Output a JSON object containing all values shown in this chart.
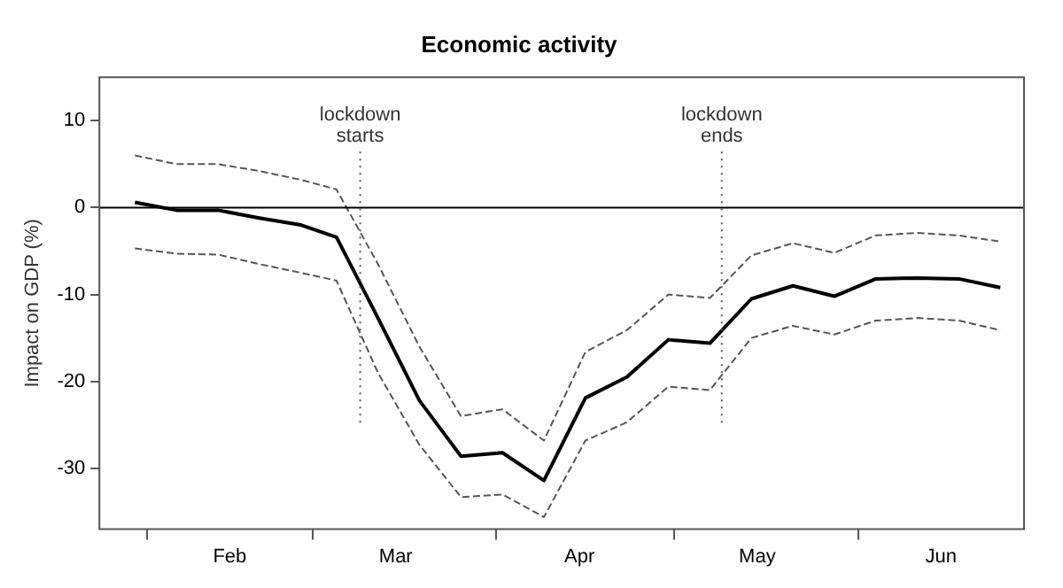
{
  "chart_data": {
    "type": "line",
    "title": "Economic activity",
    "ylabel": "Impact on GDP (%)",
    "x": [
      "--01-30",
      "--02-06",
      "--02-13",
      "--02-20",
      "--02-27",
      "--03-05",
      "--03-12",
      "--03-19",
      "--03-26",
      "--04-02",
      "--04-09",
      "--04-16",
      "--04-23",
      "--04-30",
      "--05-07",
      "--05-14",
      "--05-21",
      "--05-28",
      "--06-04",
      "--06-11",
      "--06-18",
      "--06-25"
    ],
    "series": [
      {
        "color": "#000000",
        "line_style": "solid",
        "values": [
          0.6,
          -0.3,
          -0.3,
          -1.2,
          -2,
          -3.4,
          -12.7,
          -22.2,
          -28.6,
          -28.2,
          -31.4,
          -21.9,
          -19.5,
          -15.2,
          -15.6,
          -10.5,
          -9,
          -10.2,
          -8.2,
          -8.1,
          -8.2,
          -9.2
        ]
      },
      {
        "color": "#555555",
        "line_style": "dashed",
        "values": [
          6,
          5,
          5,
          4.2,
          3.2,
          2.1,
          -6.5,
          -16,
          -24,
          -23.2,
          -26.8,
          -16.6,
          -14.1,
          -10,
          -10.4,
          -5.5,
          -4.1,
          -5.2,
          -3.2,
          -2.9,
          -3.2,
          -3.9
        ]
      },
      {
        "color": "#555555",
        "line_style": "dashed",
        "values": [
          -4.7,
          -5.3,
          -5.4,
          -6.5,
          -7.5,
          -8.4,
          -19,
          -27.3,
          -33.3,
          -33,
          -35.6,
          -26.8,
          -24.7,
          -20.6,
          -21,
          -15,
          -13.6,
          -14.6,
          -13,
          -12.7,
          -13,
          -14.1
        ]
      }
    ],
    "xlim": [
      "--01-24",
      "--06-29"
    ],
    "xticks": [
      {
        "value": "--02-01",
        "label": null
      },
      {
        "value": "--02-15",
        "label": "Feb"
      },
      {
        "value": "--03-01",
        "label": null
      },
      {
        "value": "--03-15",
        "label": "Mar"
      },
      {
        "value": "--04-01",
        "label": null
      },
      {
        "value": "--04-15",
        "label": "Apr"
      },
      {
        "value": "--05-01",
        "label": null
      },
      {
        "value": "--05-15",
        "label": "May"
      },
      {
        "value": "--06-01",
        "label": null
      },
      {
        "value": "--06-15",
        "label": "Jun"
      }
    ],
    "ylim": [
      -37,
      15
    ],
    "yticks": [
      -30,
      -20,
      -10,
      0,
      10
    ],
    "ref_lines": [
      {
        "axis": "y",
        "value": 0,
        "color": "#000000",
        "line_style": "solid"
      },
      {
        "axis": "x",
        "value": "--03-09",
        "label": "lockdown\nstarts",
        "color": "#555555",
        "line_style": "dotted"
      },
      {
        "axis": "x",
        "value": "--05-09",
        "label": "lockdown\nends",
        "color": "#555555",
        "line_style": "dotted"
      }
    ],
    "grid": false,
    "legend": false,
    "marker": "none"
  }
}
